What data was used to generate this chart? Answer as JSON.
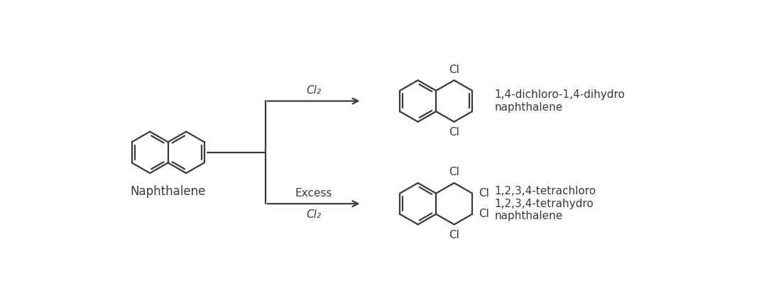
{
  "bg_color": "#ffffff",
  "line_color": "#3a3a3a",
  "text_color": "#3a3a3a",
  "font_size_label": 11,
  "font_size_name": 12,
  "font_size_product": 11,
  "naphthalene_label": "Naphthalene",
  "product1_label": "1,4-dichloro-1,4-dihydro\nnaphthalene",
  "product2_label": "1,2,3,4-tetrachloro\n1,2,3,4-tetrahydro\nnaphthalene",
  "arrow1_label": "Cl₂",
  "arrow2_label1": "Excess",
  "arrow2_label2": "Cl₂"
}
